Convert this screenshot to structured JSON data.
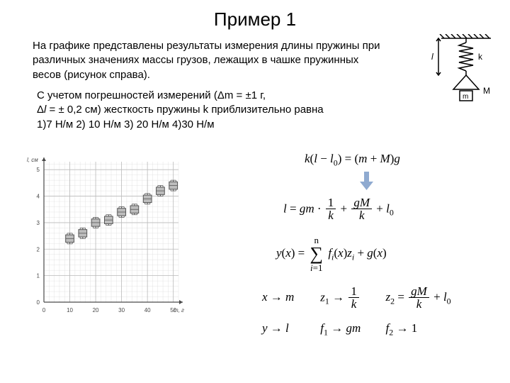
{
  "title": "Пример 1",
  "paragraph1": "На графике представлены результаты измерения длины пружины при различных значениях массы грузов, лежащих в чашке пружинных весов (рисунок справа).",
  "paragraph2_l1": "С учетом погрешностей измерений (Δm = ±1 г,",
  "paragraph2_l2": "Δl = ± 0,2 см) жесткость пружины k приблизительно равна",
  "paragraph2_l3": "1)7 Н/м 2) 10 Н/м 3) 20 Н/м 4)30 Н/м",
  "spring_diagram": {
    "label_l": "l",
    "label_k": "k",
    "label_m": "m",
    "label_M": "M",
    "stroke": "#000000"
  },
  "formula1": {
    "lhs": "k(l − l",
    "sub0": "0",
    "rhs": ") = (m + M)g"
  },
  "formula2": {
    "prefix": "l = gm ·",
    "f1_num": "1",
    "f1_den": "k",
    "plus": "+",
    "f2_num": "gM",
    "f2_den": "k",
    "tail": "+ l",
    "sub0": "0"
  },
  "formula3": {
    "prefix": "y(x) =",
    "sum_top": "n",
    "sum_bot": "i=1",
    "body": "f",
    "sub_i": "i",
    "body2": "(x)z",
    "sub_i2": "i",
    "tail": " + g(x)"
  },
  "line4": {
    "a": "x → m",
    "b_pre": "z",
    "b_sub": "1",
    "b_mid": " → ",
    "b_num": "1",
    "b_den": "k",
    "c_pre": "z",
    "c_sub": "2",
    "c_mid": " = ",
    "c_num": "gM",
    "c_den": "k",
    "c_tail": " + l",
    "c_sub0": "0"
  },
  "line5": {
    "a": "y → l",
    "b_pre": "f",
    "b_sub": "1",
    "b_mid": " → gm",
    "c_pre": "f",
    "c_sub": "2",
    "c_mid": " → 1"
  },
  "chart": {
    "type": "errorbar-scatter",
    "x_label": "m, г",
    "y_label": "l, см",
    "x_min": 0,
    "x_max": 52,
    "y_min": 0,
    "y_max": 5.3,
    "x_ticks": [
      0,
      10,
      20,
      30,
      40,
      50
    ],
    "y_ticks": [
      0,
      1,
      2,
      3,
      4,
      5
    ],
    "axis_color": "#4a4a4a",
    "tick_font_size": 8,
    "label_font_size": 8,
    "grid_color": "#bbbbbb",
    "grid_minor_color": "#dddddd",
    "grid_minor_step_x": 2,
    "grid_minor_step_y": 0.2,
    "marker_stroke": "#555555",
    "marker_fill": "#bdbdbd",
    "marker_w": 3.2,
    "marker_h": 0.28,
    "err_dx": 1.0,
    "err_dy": 0.2,
    "points": [
      {
        "x": 10,
        "y": 2.4
      },
      {
        "x": 15,
        "y": 2.6
      },
      {
        "x": 20,
        "y": 3.0
      },
      {
        "x": 25,
        "y": 3.1
      },
      {
        "x": 30,
        "y": 3.4
      },
      {
        "x": 35,
        "y": 3.5
      },
      {
        "x": 40,
        "y": 3.9
      },
      {
        "x": 45,
        "y": 4.2
      },
      {
        "x": 50,
        "y": 4.4
      }
    ]
  },
  "arrow_color": "#8faad0"
}
